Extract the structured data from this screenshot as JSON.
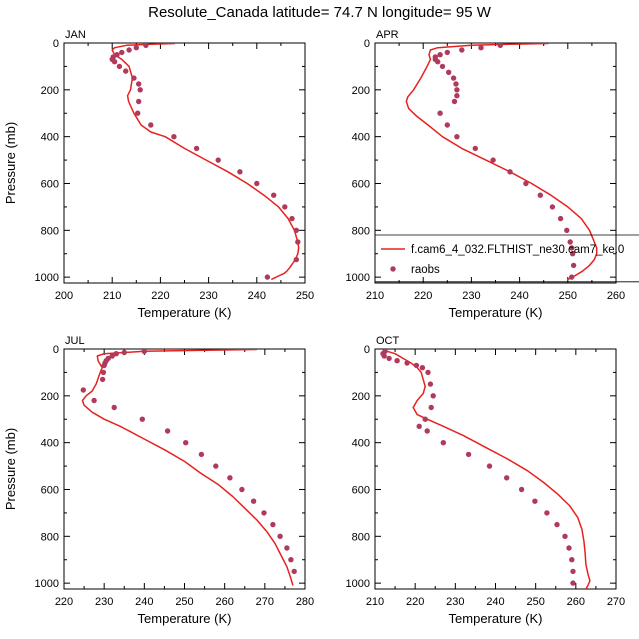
{
  "title": "Resolute_Canada  latitude= 74.7 N longitude= 95 W",
  "colors": {
    "model": "#e8211e",
    "raobs": "#b03a5c",
    "axis": "#000000"
  },
  "legend": {
    "model_label": "f.cam6_4_032.FLTHIST_ne30.cam7_ke.0",
    "obs_label": "raobs"
  },
  "chart_data": [
    {
      "type": "line",
      "panel": "JAN",
      "xlabel": "Temperature (K)",
      "ylabel": "Pressure (mb)",
      "xlim": [
        200,
        250
      ],
      "ylim": [
        1025,
        0
      ],
      "xticks": [
        "200",
        "210",
        "220",
        "230",
        "240",
        "250"
      ],
      "yticks": [
        "0",
        "200",
        "400",
        "600",
        "800",
        "1000"
      ],
      "show_ylabel": true,
      "show_legend": false,
      "model": {
        "T": [
          223,
          218,
          213,
          210.5,
          210,
          210.5,
          212,
          213.5,
          214.2,
          213.8,
          213.2,
          213.4,
          214.5,
          216,
          218,
          221,
          225,
          229.5,
          234,
          238,
          241.5,
          244.5,
          246.5,
          247.8,
          248.5,
          248.7,
          248.5,
          248,
          247.5,
          246.8,
          246.2,
          245.6,
          244.5,
          243.5,
          243
        ],
        "P": [
          2,
          5,
          10,
          20,
          30,
          50,
          70,
          100,
          150,
          200,
          225,
          250,
          300,
          350,
          380,
          400,
          450,
          500,
          550,
          600,
          650,
          700,
          750,
          800,
          850,
          875,
          900,
          925,
          940,
          960,
          975,
          985,
          995,
          1005,
          1010
        ]
      },
      "obs": {
        "T": [
          217,
          215,
          213.5,
          212,
          211,
          210.2,
          210,
          210.5,
          211.5,
          212.8,
          214.5,
          215.5,
          215.8,
          215.5,
          215.3,
          218,
          222.8,
          227.5,
          232,
          236.5,
          240,
          243.5,
          245.8,
          247.3,
          248.2,
          248.5,
          248.2,
          242.2
        ],
        "P": [
          10,
          20,
          30,
          40,
          50,
          60,
          70,
          80,
          100,
          120,
          150,
          175,
          200,
          250,
          300,
          350,
          400,
          450,
          500,
          550,
          600,
          650,
          700,
          750,
          800,
          850,
          925,
          1000
        ]
      }
    },
    {
      "type": "line",
      "panel": "APR",
      "xlabel": "Temperature (K)",
      "ylabel": "",
      "xlim": [
        210,
        260
      ],
      "ylim": [
        1025,
        0
      ],
      "xticks": [
        "210",
        "220",
        "230",
        "240",
        "250",
        "260"
      ],
      "yticks": [
        "0",
        "200",
        "400",
        "600",
        "800",
        "1000"
      ],
      "show_ylabel": false,
      "show_legend": true,
      "model": {
        "T": [
          246,
          238,
          230,
          223,
          221.5,
          221.2,
          221.5,
          220.8,
          219.5,
          218,
          216.8,
          216.5,
          217,
          218.5,
          221,
          224,
          228,
          233,
          238,
          242.5,
          246.5,
          250,
          252.8,
          254.5,
          255.5,
          256,
          256,
          255.5,
          254.5,
          253,
          251,
          250
        ],
        "P": [
          2,
          5,
          10,
          20,
          30,
          50,
          70,
          100,
          150,
          200,
          230,
          250,
          280,
          310,
          350,
          400,
          450,
          500,
          550,
          600,
          650,
          700,
          750,
          800,
          850,
          875,
          900,
          925,
          950,
          975,
          1000,
          1010
        ]
      },
      "obs": {
        "T": [
          236,
          232,
          228,
          225,
          223.5,
          222.5,
          222.5,
          223,
          224,
          225.3,
          226.3,
          226.8,
          227,
          227,
          226.5,
          223.5,
          225,
          227,
          230.8,
          234.5,
          238,
          241.3,
          244.3,
          246.8,
          248.5,
          249.8,
          250.5,
          250.8,
          251,
          251.2,
          250.8
        ],
        "P": [
          10,
          20,
          30,
          40,
          50,
          60,
          70,
          80,
          100,
          125,
          150,
          175,
          200,
          225,
          250,
          300,
          350,
          400,
          450,
          500,
          550,
          600,
          650,
          700,
          750,
          800,
          850,
          875,
          900,
          950,
          1000
        ]
      }
    },
    {
      "type": "line",
      "panel": "JUL",
      "xlabel": "Temperature (K)",
      "ylabel": "Pressure (mb)",
      "xlim": [
        220,
        280
      ],
      "ylim": [
        1025,
        0
      ],
      "xticks": [
        "220",
        "230",
        "240",
        "250",
        "260",
        "270",
        "280"
      ],
      "yticks": [
        "0",
        "200",
        "400",
        "600",
        "800",
        "1000"
      ],
      "show_ylabel": true,
      "show_legend": false,
      "model": {
        "T": [
          268,
          255,
          240,
          230,
          228.3,
          228.5,
          229.5,
          229,
          228,
          227,
          225.5,
          224.6,
          225,
          227,
          230,
          234,
          239.5,
          245,
          250,
          254,
          258.5,
          262,
          265,
          268,
          270.5,
          272.5,
          274,
          275.5,
          276.5,
          277
        ],
        "P": [
          2,
          5,
          10,
          20,
          30,
          50,
          80,
          100,
          150,
          180,
          200,
          220,
          240,
          270,
          300,
          330,
          380,
          430,
          480,
          530,
          580,
          630,
          680,
          730,
          780,
          830,
          880,
          930,
          980,
          1010
        ]
      },
      "obs": {
        "T": [
          240,
          235,
          233,
          232,
          231,
          230.5,
          230.2,
          230,
          229.8,
          229.6,
          224.8,
          227.5,
          232.5,
          239.5,
          245.8,
          250.3,
          254.2,
          257.8,
          261.3,
          264.3,
          267.2,
          269.8,
          272,
          273.8,
          275.5,
          276.5,
          277.3
        ],
        "P": [
          10,
          15,
          20,
          30,
          40,
          50,
          60,
          70,
          100,
          130,
          175,
          220,
          250,
          300,
          350,
          400,
          450,
          500,
          550,
          600,
          650,
          700,
          750,
          800,
          850,
          900,
          950
        ]
      }
    },
    {
      "type": "line",
      "panel": "OCT",
      "xlabel": "Temperature (K)",
      "ylabel": "",
      "xlim": [
        210,
        270
      ],
      "ylim": [
        1025,
        0
      ],
      "xticks": [
        "210",
        "220",
        "230",
        "240",
        "250",
        "260",
        "270"
      ],
      "yticks": [
        "0",
        "200",
        "400",
        "600",
        "800",
        "1000"
      ],
      "show_ylabel": false,
      "show_legend": false,
      "model": {
        "T": [
          212,
          213,
          215,
          217,
          219,
          220.5,
          221.5,
          222,
          222.5,
          222,
          220.5,
          219.5,
          220.5,
          223,
          227,
          232,
          237.5,
          243,
          248,
          252,
          255.5,
          258.5,
          260.5,
          261.5,
          262,
          262.3,
          262.5,
          263,
          263.5,
          263,
          262.5
        ],
        "P": [
          5,
          10,
          20,
          40,
          60,
          80,
          100,
          130,
          160,
          190,
          220,
          250,
          280,
          300,
          330,
          370,
          420,
          470,
          520,
          570,
          620,
          670,
          720,
          770,
          820,
          870,
          920,
          960,
          990,
          1010,
          1025
        ]
      },
      "obs": {
        "T": [
          212.5,
          212,
          212.3,
          213.5,
          215.5,
          218,
          220.3,
          221.8,
          223.2,
          223.8,
          224.5,
          224,
          222.5,
          221,
          223,
          227,
          233.3,
          238.5,
          242.8,
          246.5,
          249.8,
          252.8,
          255.3,
          257.3,
          258.3,
          259,
          259.3,
          259.3
        ],
        "P": [
          10,
          20,
          30,
          40,
          50,
          60,
          70,
          80,
          100,
          150,
          200,
          250,
          300,
          330,
          350,
          400,
          450,
          500,
          550,
          600,
          650,
          700,
          750,
          800,
          850,
          900,
          950,
          1000
        ]
      }
    }
  ]
}
